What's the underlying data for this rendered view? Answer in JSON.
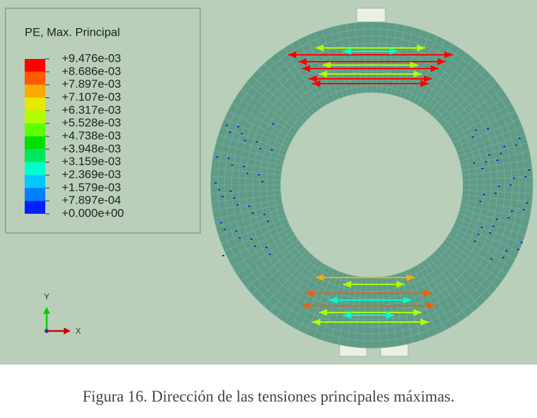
{
  "legend": {
    "title": "PE, Max. Principal",
    "colors": [
      "#ff0000",
      "#ff5a00",
      "#ffaa00",
      "#e8e800",
      "#b0ff00",
      "#5cff00",
      "#00e000",
      "#00e860",
      "#00ffd0",
      "#00c8ff",
      "#0080ff",
      "#0020ff"
    ],
    "labels": [
      "+9.476e-03",
      "+8.686e-03",
      "+7.897e-03",
      "+7.107e-03",
      "+6.317e-03",
      "+5.528e-03",
      "+4.738e-03",
      "+3.948e-03",
      "+3.159e-03",
      "+2.369e-03",
      "+1.579e-03",
      "+7.897e-04",
      "+0.000e+00"
    ]
  },
  "triad": {
    "y": "Y",
    "x": "X"
  },
  "caption": "Figura 16. Dirección de las tensiones principales máximas."
}
